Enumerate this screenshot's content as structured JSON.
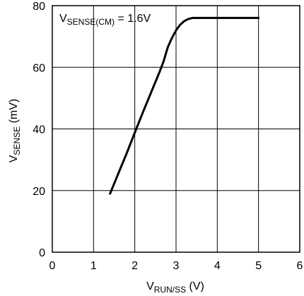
{
  "chart_data": {
    "type": "line",
    "title": "",
    "annotation": {
      "main": "V",
      "sub": "SENSE(CM)",
      "tail": " = 1.6V"
    },
    "xlabel": {
      "main": "V",
      "sub": "RUN/SS",
      "tail": " (V)"
    },
    "ylabel": {
      "main": "V",
      "sub": "SENSE",
      "tail": " (mV)"
    },
    "xlim": [
      0,
      6
    ],
    "ylim": [
      0,
      80
    ],
    "xticks": [
      0,
      1,
      2,
      3,
      4,
      5,
      6
    ],
    "yticks": [
      0,
      20,
      40,
      60,
      80
    ],
    "grid": true,
    "series": [
      {
        "x": [
          1.4,
          1.6,
          1.8,
          2.0,
          2.2,
          2.4,
          2.6,
          2.7,
          2.8,
          2.9,
          3.0,
          3.1,
          3.2,
          3.3,
          3.4,
          3.5,
          4.0,
          4.5,
          5.0
        ],
        "y": [
          19,
          25.5,
          32,
          38.8,
          45.5,
          52,
          58.5,
          62,
          66.5,
          69.5,
          72,
          73.8,
          75,
          75.7,
          76,
          76,
          76,
          76,
          76
        ]
      }
    ]
  }
}
